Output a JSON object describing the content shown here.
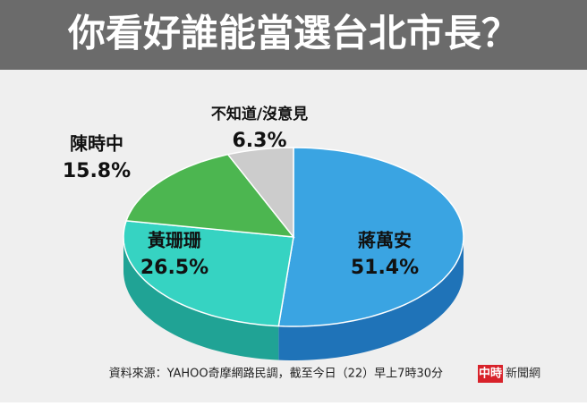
{
  "chart_data": {
    "type": "pie3d",
    "title": "你看好誰能當選台北市長？",
    "categories": [
      "蔣萬安",
      "黃珊珊",
      "陳時中",
      "不知道/沒意見"
    ],
    "values": [
      51.4,
      26.5,
      15.8,
      6.3
    ],
    "value_labels": [
      "51.4%",
      "26.5%",
      "15.8%",
      "6.3%"
    ],
    "colors": [
      "#3aa4e2",
      "#36d3c2",
      "#4cb650",
      "#cccccc"
    ],
    "side_colors": [
      "#1f73b8",
      "#20a395",
      "#2f8a35",
      "#9a9a9a"
    ],
    "source": "資料來源：YAHOO奇摩網路民調，截至今日（22）早上7時30分",
    "brand_mark": "中時",
    "brand": "新聞網"
  }
}
